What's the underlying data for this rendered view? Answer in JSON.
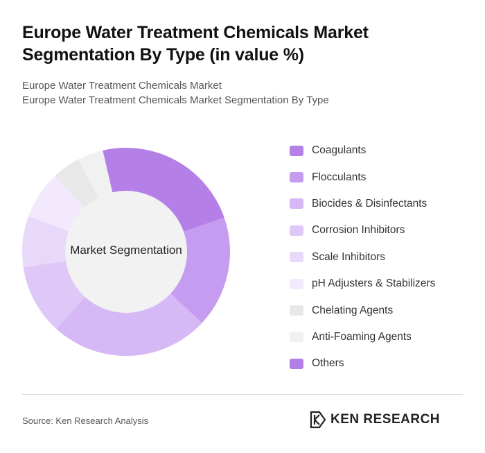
{
  "header": {
    "title": "Europe Water Treatment Chemicals Market Segmentation By Type (in value %)",
    "subtitle_line1": "Europe Water Treatment Chemicals Market",
    "subtitle_line2": "Europe Water Treatment Chemicals Market Segmentation By Type"
  },
  "chart_data": {
    "type": "pie",
    "variant": "donut",
    "center_label": "Market Segmentation",
    "legend_position": "right",
    "categories": [
      "Coagulants",
      "Flocculants",
      "Biocides & Disinfectants",
      "Corrosion Inhibitors",
      "Scale Inhibitors",
      "pH Adjusters & Stabilizers",
      "Chelating Agents",
      "Anti-Foaming Agents",
      "Others"
    ],
    "values": [
      23.5,
      17.5,
      25,
      11,
      8,
      7.5,
      4.5,
      4,
      0
    ],
    "colors": [
      "#b57fe8",
      "#c59cf0",
      "#d5b8f5",
      "#dec8f7",
      "#e8d9fa",
      "#f2eafc",
      "#e8e8e8",
      "#f1f1f1",
      "#b57fe8"
    ]
  },
  "footer": {
    "source": "Source: Ken Research Analysis",
    "logo_text": "KEN RESEARCH",
    "logo_icon": "ken-research-k-icon"
  }
}
